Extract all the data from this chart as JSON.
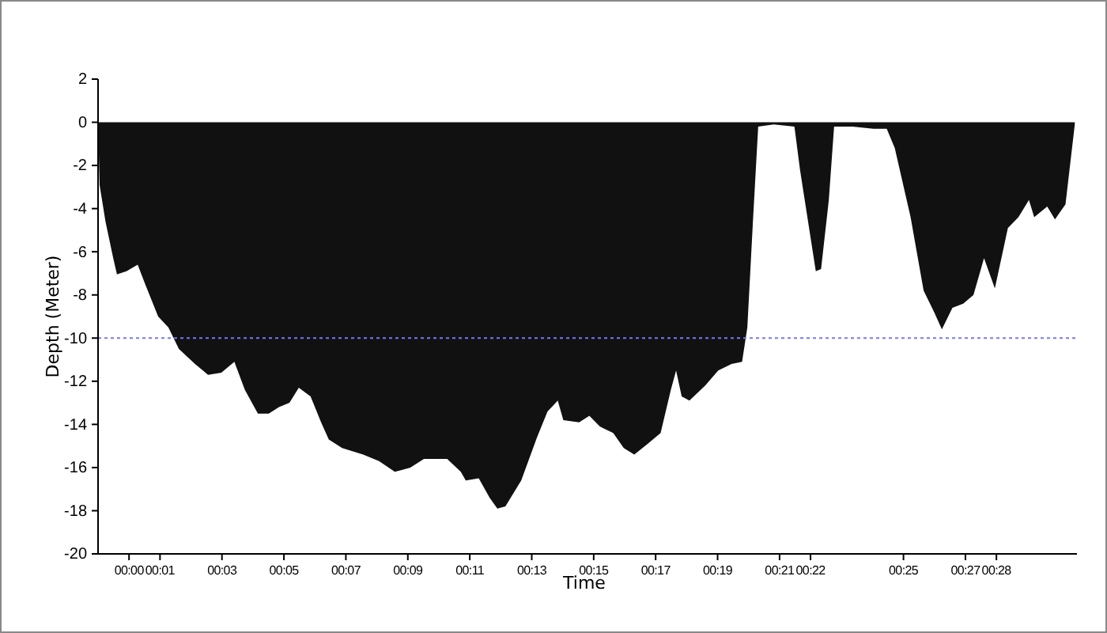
{
  "chart_data": {
    "type": "area",
    "xlabel": "Time",
    "ylabel": "Depth (Meter)",
    "x": [
      -1,
      -0.95,
      -0.76,
      -0.51,
      -0.39,
      -0.08,
      0.28,
      0.52,
      0.94,
      1.27,
      1.61,
      2.13,
      2.55,
      2.98,
      3.4,
      3.74,
      4.16,
      4.51,
      4.84,
      5.18,
      5.48,
      5.86,
      6.2,
      6.45,
      6.88,
      7.56,
      8.07,
      8.58,
      9.08,
      9.52,
      10.27,
      10.71,
      10.87,
      11.29,
      11.64,
      11.89,
      12.15,
      12.66,
      13.17,
      13.51,
      13.84,
      14.02,
      14.53,
      14.86,
      15.2,
      15.63,
      15.97,
      16.31,
      16.74,
      17.16,
      17.49,
      17.66,
      17.84,
      18.09,
      18.6,
      19.02,
      19.45,
      19.79,
      19.96,
      20.14,
      20.31,
      20.81,
      21.48,
      21.66,
      21.92,
      22.17,
      22.34,
      22.59,
      22.76,
      23.36,
      24.03,
      24.46,
      24.72,
      25.23,
      25.65,
      25.99,
      26.24,
      26.58,
      26.93,
      27.26,
      27.6,
      27.95,
      28.37,
      28.71,
      29.05,
      29.22,
      29.64,
      29.89,
      30.23,
      30.53
    ],
    "series": [
      {
        "color": "#111111",
        "values": [
          0,
          -2.9,
          -4.6,
          -6.3,
          -7.05,
          -6.9,
          -6.6,
          -7.5,
          -9,
          -9.5,
          -10.5,
          -11.2,
          -11.7,
          -11.6,
          -11.1,
          -12.4,
          -13.5,
          -13.5,
          -13.2,
          -13,
          -12.3,
          -12.7,
          -13.9,
          -14.7,
          -15.1,
          -15.4,
          -15.7,
          -16.2,
          -16,
          -15.6,
          -15.6,
          -16.2,
          -16.6,
          -16.5,
          -17.4,
          -17.9,
          -17.8,
          -16.6,
          -14.6,
          -13.4,
          -12.9,
          -13.8,
          -13.9,
          -13.6,
          -14.1,
          -14.4,
          -15.1,
          -15.4,
          -14.9,
          -14.4,
          -12.4,
          -11.5,
          -12.7,
          -12.9,
          -12.2,
          -11.5,
          -11.2,
          -11.1,
          -9.5,
          -4.6,
          -0.2,
          -0.1,
          -0.2,
          -2.2,
          -4.6,
          -6.9,
          -6.8,
          -3.6,
          -0.2,
          -0.2,
          -0.3,
          -0.3,
          -1.2,
          -4.4,
          -7.8,
          -8.8,
          -9.6,
          -8.6,
          -8.4,
          -8,
          -6.3,
          -7.7,
          -4.9,
          -4.4,
          -3.6,
          -4.4,
          -3.9,
          -4.5,
          -3.8,
          -0.1
        ]
      }
    ],
    "xlim": [
      -1,
      30.6
    ],
    "xticks": [
      {
        "value": 0,
        "label": "00:00"
      },
      {
        "value": 1,
        "label": "00:01"
      },
      {
        "value": 3,
        "label": "00:03"
      },
      {
        "value": 5,
        "label": "00:05"
      },
      {
        "value": 7,
        "label": "00:07"
      },
      {
        "value": 9,
        "label": "00:09"
      },
      {
        "value": 11,
        "label": "00:11"
      },
      {
        "value": 13,
        "label": "00:13"
      },
      {
        "value": 15,
        "label": "00:15"
      },
      {
        "value": 17,
        "label": "00:17"
      },
      {
        "value": 19,
        "label": "00:19"
      },
      {
        "value": 21,
        "label": "00:21"
      },
      {
        "value": 22,
        "label": "00:22"
      },
      {
        "value": 25,
        "label": "00:25"
      },
      {
        "value": 27,
        "label": "00:27"
      },
      {
        "value": 28,
        "label": "00:28"
      }
    ],
    "ylim": [
      -20,
      2
    ],
    "yticks": [
      2,
      0,
      -2,
      -4,
      -6,
      -8,
      -10,
      -12,
      -14,
      -16,
      -18,
      -20
    ],
    "ref_lines": [
      {
        "axis": "y",
        "value": -10,
        "color": "#7777ff",
        "line_style": "dotted"
      }
    ]
  }
}
